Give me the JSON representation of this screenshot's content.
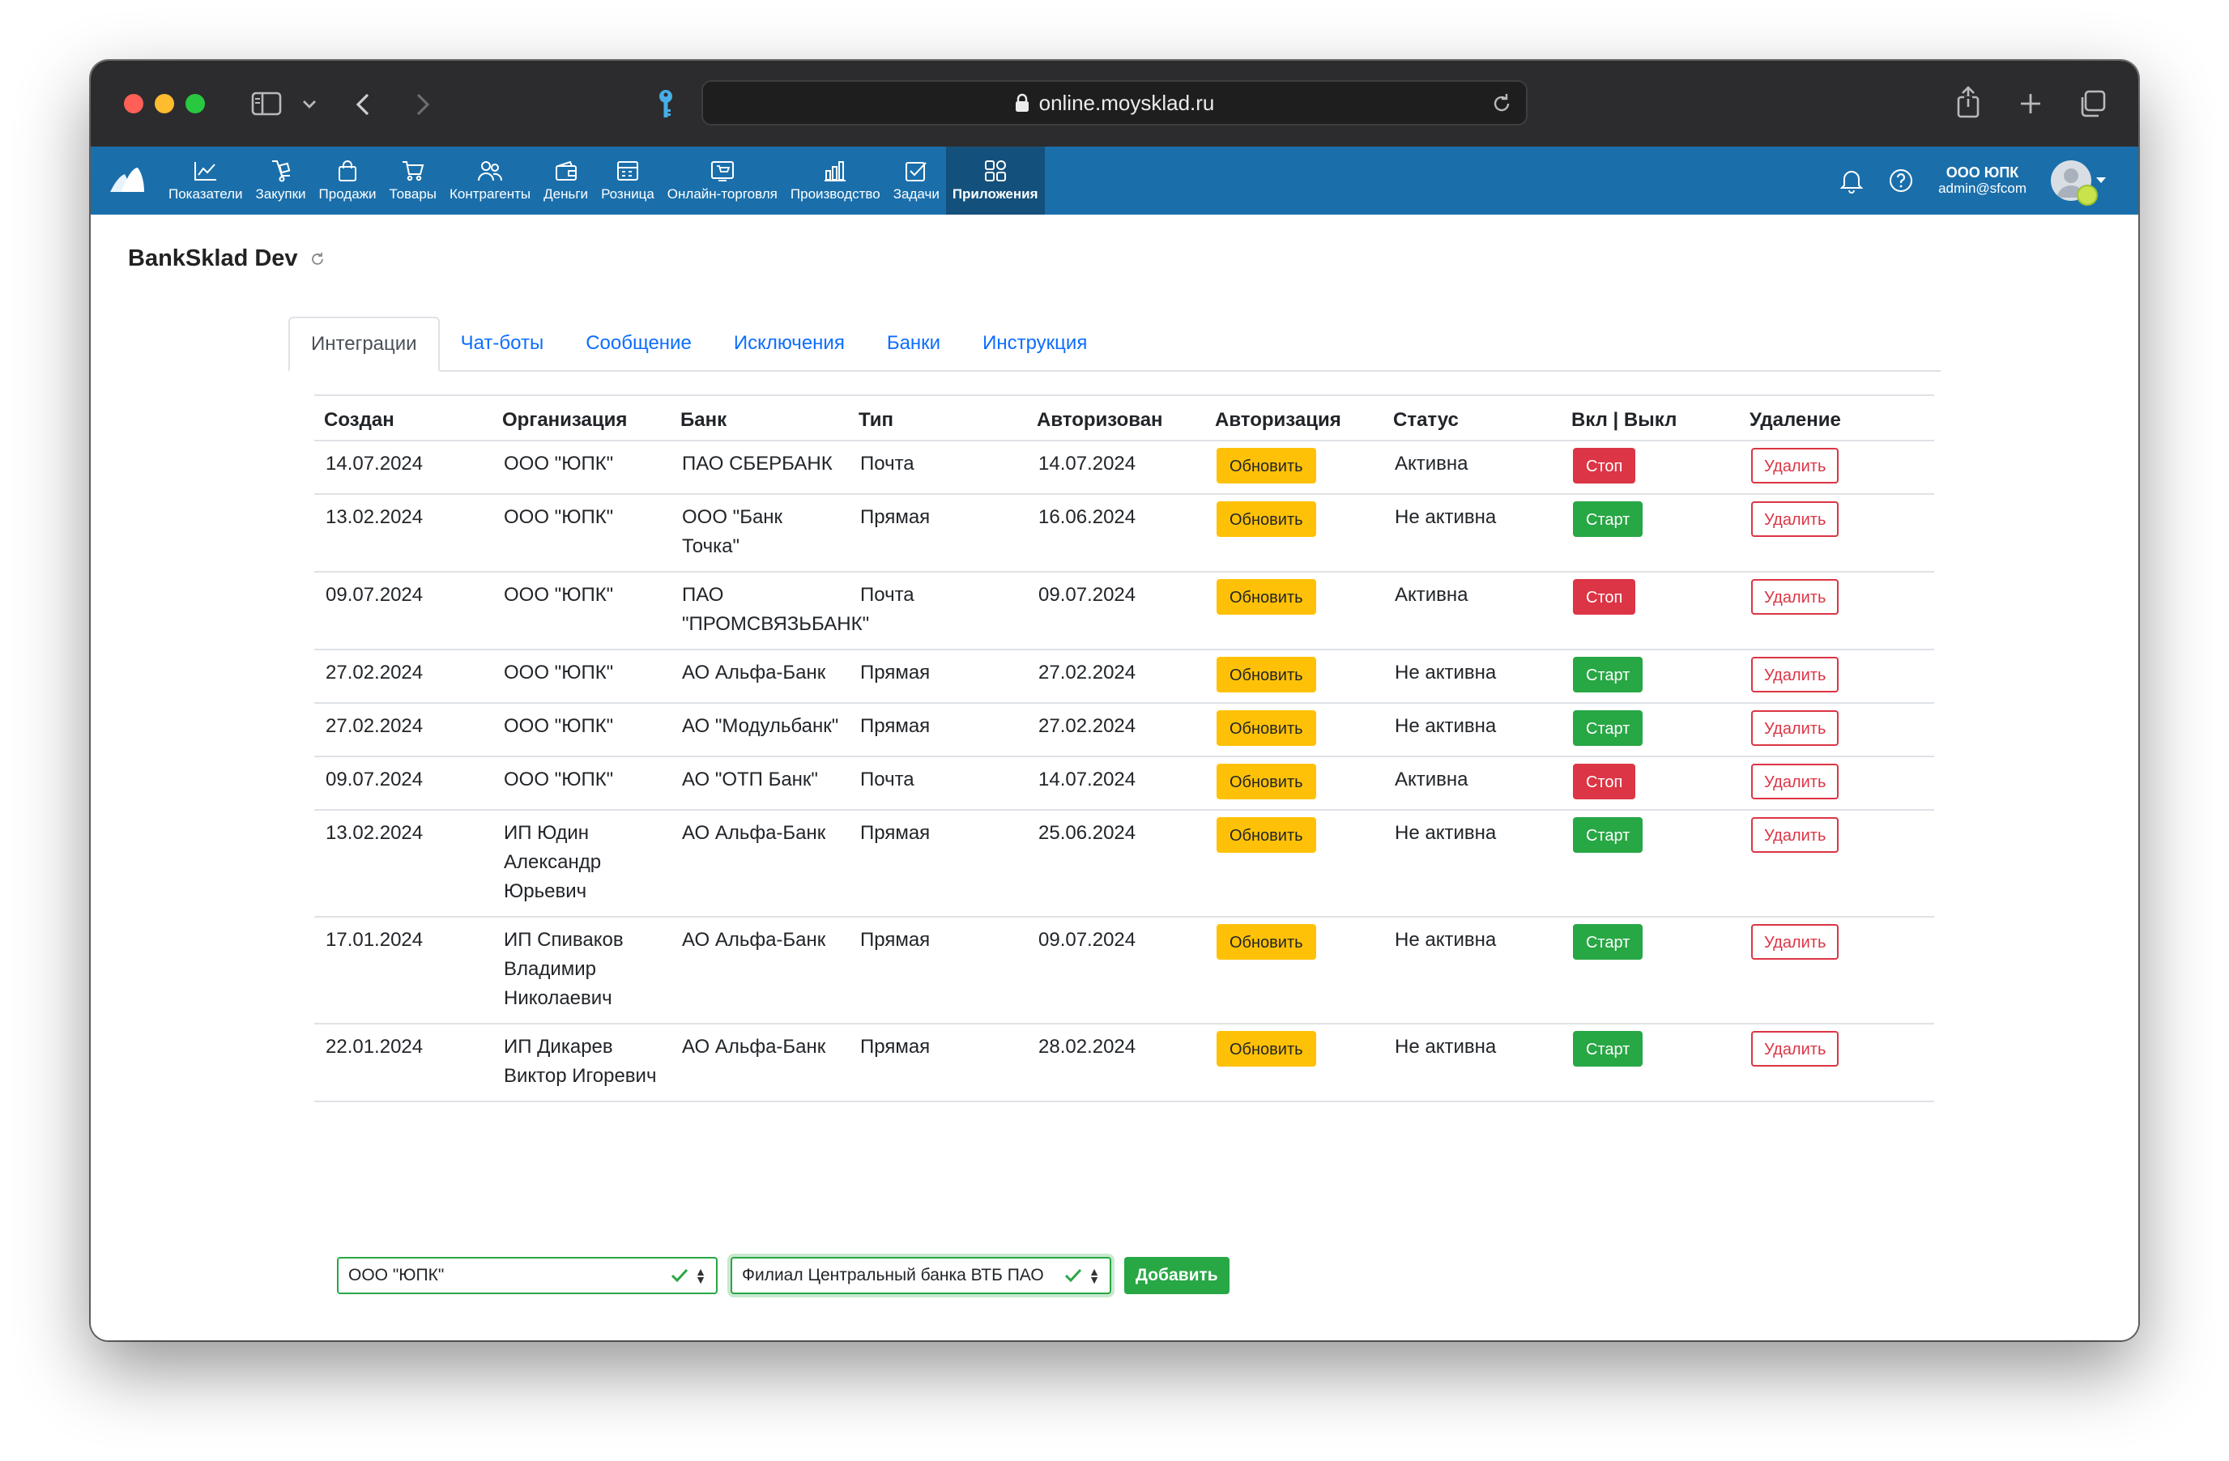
{
  "browser": {
    "url": "online.moysklad.ru"
  },
  "nav": {
    "items": [
      {
        "label": "Показатели",
        "icon": "chart-line-icon"
      },
      {
        "label": "Закупки",
        "icon": "cart-dolly-icon"
      },
      {
        "label": "Продажи",
        "icon": "shopping-bag-icon"
      },
      {
        "label": "Товары",
        "icon": "shopping-cart-icon"
      },
      {
        "label": "Контрагенты",
        "icon": "users-icon"
      },
      {
        "label": "Деньги",
        "icon": "wallet-icon"
      },
      {
        "label": "Розница",
        "icon": "cash-register-icon"
      },
      {
        "label": "Онлайн-торговля",
        "icon": "online-store-icon"
      },
      {
        "label": "Производство",
        "icon": "factory-icon"
      },
      {
        "label": "Задачи",
        "icon": "checkbox-icon"
      },
      {
        "label": "Приложения",
        "icon": "apps-grid-icon",
        "active": true
      }
    ],
    "user": {
      "company": "ООО ЮПК",
      "email": "admin@sfcom"
    }
  },
  "page": {
    "title": "BankSklad Dev"
  },
  "tabs": [
    {
      "label": "Интеграции",
      "active": true
    },
    {
      "label": "Чат-боты"
    },
    {
      "label": "Сообщение"
    },
    {
      "label": "Исключения"
    },
    {
      "label": "Банки"
    },
    {
      "label": "Инструкция"
    }
  ],
  "table": {
    "headers": [
      "Создан",
      "Организация",
      "Банк",
      "Тип",
      "Авторизован",
      "Авторизация",
      "Статус",
      "Вкл | Выкл",
      "Удаление"
    ],
    "refresh_label": "Обновить",
    "delete_label": "Удалить",
    "start_label": "Старт",
    "stop_label": "Стоп",
    "rows": [
      {
        "created": "14.07.2024",
        "org": "ООО \"ЮПК\"",
        "bank": "ПАО СБЕРБАНК",
        "type": "Почта",
        "authorized": "14.07.2024",
        "status": "Активна",
        "active": true
      },
      {
        "created": "13.02.2024",
        "org": "ООО \"ЮПК\"",
        "bank": "ООО \"Банк Точка\"",
        "type": "Прямая",
        "authorized": "16.06.2024",
        "status": "Не активна",
        "active": false
      },
      {
        "created": "09.07.2024",
        "org": "ООО \"ЮПК\"",
        "bank": "ПАО \"ПРОМСВЯЗЬБАНК\"",
        "type": "Почта",
        "authorized": "09.07.2024",
        "status": "Активна",
        "active": true
      },
      {
        "created": "27.02.2024",
        "org": "ООО \"ЮПК\"",
        "bank": "АО Альфа-Банк",
        "type": "Прямая",
        "authorized": "27.02.2024",
        "status": "Не активна",
        "active": false
      },
      {
        "created": "27.02.2024",
        "org": "ООО \"ЮПК\"",
        "bank": "АО \"Модульбанк\"",
        "type": "Прямая",
        "authorized": "27.02.2024",
        "status": "Не активна",
        "active": false
      },
      {
        "created": "09.07.2024",
        "org": "ООО \"ЮПК\"",
        "bank": "АО \"ОТП Банк\"",
        "type": "Почта",
        "authorized": "14.07.2024",
        "status": "Активна",
        "active": true
      },
      {
        "created": "13.02.2024",
        "org": "ИП Юдин Александр Юрьевич",
        "bank": "АО Альфа-Банк",
        "type": "Прямая",
        "authorized": "25.06.2024",
        "status": "Не активна",
        "active": false
      },
      {
        "created": "17.01.2024",
        "org": "ИП Спиваков Владимир Николаевич",
        "bank": "АО Альфа-Банк",
        "type": "Прямая",
        "authorized": "09.07.2024",
        "status": "Не активна",
        "active": false
      },
      {
        "created": "22.01.2024",
        "org": "ИП Дикарев Виктор Игоревич",
        "bank": "АО Альфа-Банк",
        "type": "Прямая",
        "authorized": "28.02.2024",
        "status": "Не активна",
        "active": false
      }
    ]
  },
  "form": {
    "org_select": "ООО \"ЮПК\"",
    "bank_select": "Филиал Центральный банка ВТБ ПАО",
    "add_label": "Добавить"
  },
  "colors": {
    "nav_bg": "#1a6fab",
    "nav_active": "#14507c",
    "warning": "#ffc107",
    "danger": "#dc3545",
    "success": "#28a745",
    "link": "#0d6efd"
  }
}
